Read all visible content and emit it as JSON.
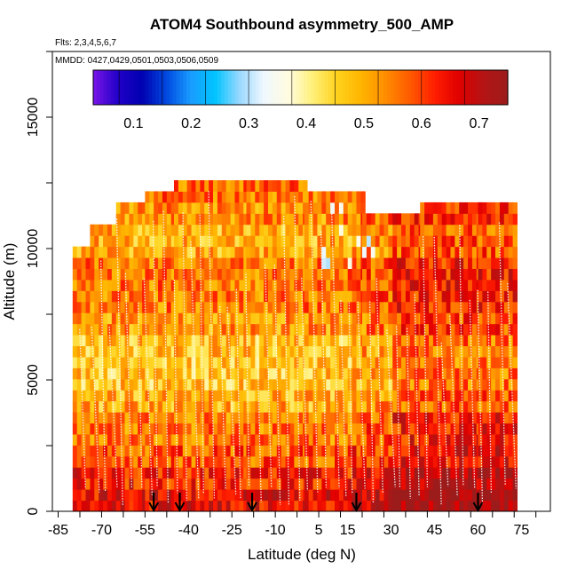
{
  "chart_data": {
    "type": "heatmap",
    "title": "ATOM4 Southbound asymmetry_500_AMP",
    "flights_note": "Flts: 2,3,4,5,6,7",
    "dates_note": "MMDD: 0427,0429,0501,0503,0506,0509",
    "xlabel": "Latitude (deg N)",
    "ylabel": "Altitude (m)",
    "xlim": [
      -87,
      85
    ],
    "ylim": [
      0,
      17500
    ],
    "x_ticks": [
      -85,
      -70,
      -55,
      -40,
      -25,
      -10,
      5,
      15,
      30,
      45,
      60,
      75
    ],
    "y_ticks": [
      0,
      5000,
      10000,
      15000
    ],
    "colorbar": {
      "range": [
        0.03,
        0.75
      ],
      "ticks": [
        0.1,
        0.2,
        0.3,
        0.4,
        0.5,
        0.6,
        0.7
      ],
      "colors": [
        "#7a16e8",
        "#2200c8",
        "#0000b0",
        "#0048e0",
        "#199cff",
        "#00c4ff",
        "#9ad8ff",
        "#f0f8ff",
        "#fffce0",
        "#fff07a",
        "#ffd21c",
        "#ffb400",
        "#ff8c00",
        "#ff5a00",
        "#ff1e00",
        "#e00000",
        "#b41414",
        "#9c1c1c"
      ]
    },
    "data_extent": {
      "profiles": [
        {
          "lat_start": -80,
          "lat_end": -74,
          "alt_top": 10000
        },
        {
          "lat_start": -74,
          "lat_end": -65,
          "alt_top": 10800
        },
        {
          "lat_start": -65,
          "lat_end": -55,
          "alt_top": 11400
        },
        {
          "lat_start": -55,
          "lat_end": -45,
          "alt_top": 12000
        },
        {
          "lat_start": -45,
          "lat_end": -20,
          "alt_top": 12500
        },
        {
          "lat_start": -20,
          "lat_end": 0,
          "alt_top": 12200
        },
        {
          "lat_start": 0,
          "lat_end": 20,
          "alt_top": 12000
        },
        {
          "lat_start": 20,
          "lat_end": 40,
          "alt_top": 11000
        },
        {
          "lat_start": 40,
          "lat_end": 60,
          "alt_top": 11400
        },
        {
          "lat_start": 60,
          "lat_end": 73,
          "alt_top": 11400
        }
      ]
    },
    "cell_values_by_altitude": [
      {
        "alt_m": 0,
        "value": 0.66
      },
      {
        "alt_m": 1000,
        "value": 0.63
      },
      {
        "alt_m": 2000,
        "value": 0.58
      },
      {
        "alt_m": 3000,
        "value": 0.55
      },
      {
        "alt_m": 4000,
        "value": 0.5
      },
      {
        "alt_m": 5000,
        "value": 0.47
      },
      {
        "alt_m": 6000,
        "value": 0.48
      },
      {
        "alt_m": 7000,
        "value": 0.52
      },
      {
        "alt_m": 8000,
        "value": 0.55
      },
      {
        "alt_m": 9000,
        "value": 0.55
      },
      {
        "alt_m": 10000,
        "value": 0.5
      },
      {
        "alt_m": 11000,
        "value": 0.53
      },
      {
        "alt_m": 12000,
        "value": 0.56
      }
    ],
    "flight_markers_lat": [
      -52,
      -43,
      -18,
      18,
      60
    ]
  }
}
